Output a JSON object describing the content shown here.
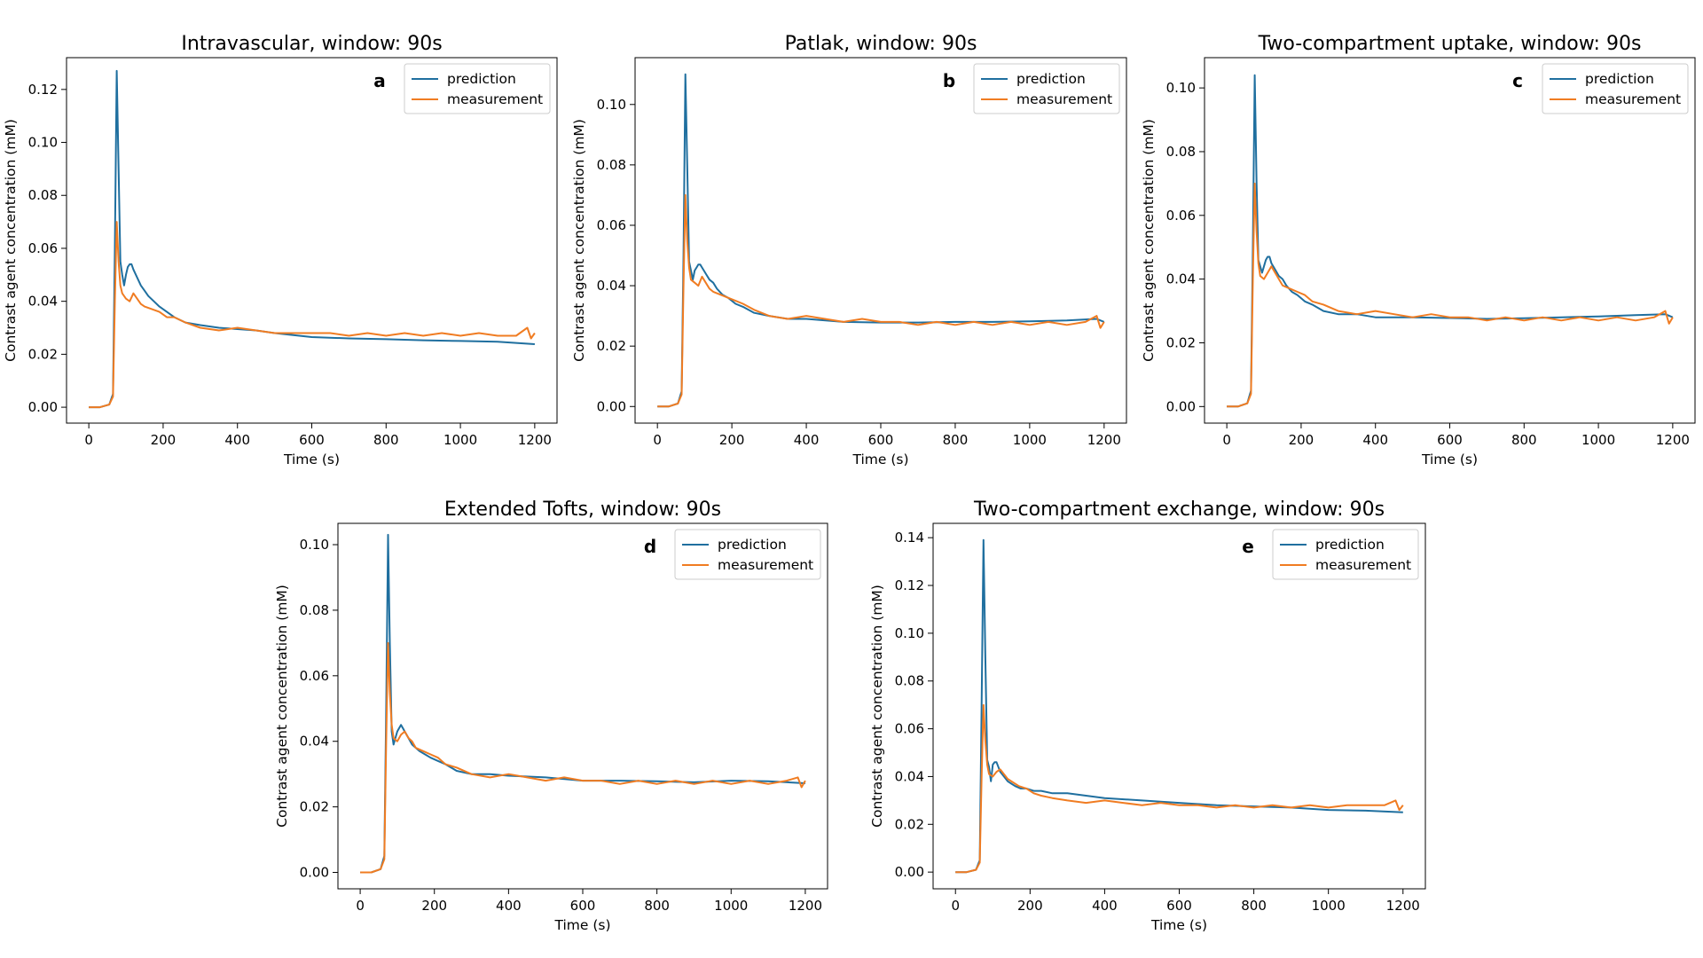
{
  "figure": {
    "colors": {
      "prediction": "#1f6f9f",
      "measurement": "#f07c22"
    }
  },
  "chart_data": [
    {
      "type": "line",
      "letter": "a",
      "title": "Intravascular, window: 90s",
      "xlabel": "Time (s)",
      "ylabel": "Contrast agent concentration (mM)",
      "xlim": [
        -60,
        1260
      ],
      "ylim": [
        -0.006,
        0.132
      ],
      "xticks": [
        0,
        200,
        400,
        600,
        800,
        1000,
        1200
      ],
      "yticks": [
        0.0,
        0.02,
        0.04,
        0.06,
        0.08,
        0.1,
        0.12
      ],
      "ytick_labels": [
        "0.00",
        "0.02",
        "0.04",
        "0.06",
        "0.08",
        "0.10",
        "0.12"
      ],
      "legend": "top-right",
      "series": [
        {
          "name": "prediction",
          "x": [
            0,
            30,
            55,
            65,
            70,
            75,
            80,
            85,
            90,
            95,
            100,
            105,
            110,
            115,
            120,
            130,
            140,
            150,
            160,
            175,
            190,
            210,
            230,
            260,
            300,
            350,
            400,
            450,
            500,
            600,
            700,
            800,
            900,
            1000,
            1100,
            1200
          ],
          "y": [
            0.0,
            0.0,
            0.001,
            0.005,
            0.06,
            0.127,
            0.09,
            0.055,
            0.05,
            0.046,
            0.05,
            0.053,
            0.054,
            0.054,
            0.052,
            0.049,
            0.046,
            0.044,
            0.042,
            0.04,
            0.038,
            0.036,
            0.034,
            0.032,
            0.031,
            0.03,
            0.0295,
            0.029,
            0.028,
            0.0265,
            0.026,
            0.0257,
            0.0253,
            0.025,
            0.0247,
            0.0238
          ]
        },
        {
          "name": "measurement",
          "x": [
            0,
            30,
            55,
            65,
            70,
            75,
            80,
            85,
            90,
            100,
            110,
            120,
            130,
            140,
            150,
            170,
            190,
            210,
            230,
            260,
            300,
            350,
            400,
            450,
            500,
            550,
            600,
            650,
            700,
            750,
            800,
            850,
            900,
            950,
            1000,
            1050,
            1100,
            1150,
            1180,
            1190,
            1200
          ],
          "y": [
            0.0,
            0.0,
            0.001,
            0.004,
            0.04,
            0.07,
            0.055,
            0.046,
            0.043,
            0.041,
            0.04,
            0.043,
            0.041,
            0.039,
            0.038,
            0.037,
            0.036,
            0.034,
            0.034,
            0.032,
            0.03,
            0.029,
            0.03,
            0.029,
            0.028,
            0.028,
            0.028,
            0.028,
            0.027,
            0.028,
            0.027,
            0.028,
            0.027,
            0.028,
            0.027,
            0.028,
            0.027,
            0.027,
            0.03,
            0.026,
            0.028
          ]
        }
      ]
    },
    {
      "type": "line",
      "letter": "b",
      "title": "Patlak, window: 90s",
      "xlabel": "Time (s)",
      "ylabel": "Contrast agent concentration (mM)",
      "xlim": [
        -60,
        1260
      ],
      "ylim": [
        -0.0055,
        0.1155
      ],
      "xticks": [
        0,
        200,
        400,
        600,
        800,
        1000,
        1200
      ],
      "yticks": [
        0.0,
        0.02,
        0.04,
        0.06,
        0.08,
        0.1
      ],
      "ytick_labels": [
        "0.00",
        "0.02",
        "0.04",
        "0.06",
        "0.08",
        "0.10"
      ],
      "legend": "top-right",
      "series": [
        {
          "name": "prediction",
          "x": [
            0,
            30,
            55,
            65,
            70,
            75,
            80,
            85,
            90,
            95,
            100,
            105,
            110,
            115,
            120,
            130,
            140,
            150,
            160,
            175,
            190,
            210,
            230,
            260,
            300,
            350,
            400,
            500,
            600,
            700,
            800,
            900,
            1000,
            1100,
            1180,
            1200
          ],
          "y": [
            0.0,
            0.0,
            0.001,
            0.005,
            0.05,
            0.11,
            0.08,
            0.048,
            0.045,
            0.042,
            0.045,
            0.046,
            0.047,
            0.047,
            0.046,
            0.044,
            0.042,
            0.041,
            0.039,
            0.037,
            0.036,
            0.034,
            0.033,
            0.031,
            0.03,
            0.029,
            0.029,
            0.028,
            0.0278,
            0.0278,
            0.028,
            0.028,
            0.0282,
            0.0285,
            0.029,
            0.028
          ]
        },
        {
          "name": "measurement",
          "x": [
            0,
            30,
            55,
            65,
            70,
            75,
            80,
            85,
            90,
            100,
            110,
            120,
            130,
            140,
            150,
            170,
            190,
            210,
            230,
            260,
            300,
            350,
            400,
            450,
            500,
            550,
            600,
            650,
            700,
            750,
            800,
            850,
            900,
            950,
            1000,
            1050,
            1100,
            1150,
            1180,
            1190,
            1200
          ],
          "y": [
            0.0,
            0.0,
            0.001,
            0.004,
            0.04,
            0.07,
            0.055,
            0.046,
            0.042,
            0.041,
            0.04,
            0.043,
            0.041,
            0.039,
            0.038,
            0.037,
            0.036,
            0.035,
            0.034,
            0.032,
            0.03,
            0.029,
            0.03,
            0.029,
            0.028,
            0.029,
            0.028,
            0.028,
            0.027,
            0.028,
            0.027,
            0.028,
            0.027,
            0.028,
            0.027,
            0.028,
            0.027,
            0.028,
            0.03,
            0.026,
            0.028
          ]
        }
      ]
    },
    {
      "type": "line",
      "letter": "c",
      "title": "Two-compartment uptake, window: 90s",
      "xlabel": "Time (s)",
      "ylabel": "Contrast agent concentration (mM)",
      "xlim": [
        -60,
        1260
      ],
      "ylim": [
        -0.0052,
        0.1095
      ],
      "xticks": [
        0,
        200,
        400,
        600,
        800,
        1000,
        1200
      ],
      "yticks": [
        0.0,
        0.02,
        0.04,
        0.06,
        0.08,
        0.1
      ],
      "ytick_labels": [
        "0.00",
        "0.02",
        "0.04",
        "0.06",
        "0.08",
        "0.10"
      ],
      "legend": "top-right",
      "series": [
        {
          "name": "prediction",
          "x": [
            0,
            30,
            55,
            65,
            70,
            75,
            80,
            85,
            90,
            95,
            100,
            105,
            110,
            115,
            120,
            130,
            140,
            150,
            160,
            175,
            190,
            210,
            230,
            260,
            300,
            350,
            400,
            500,
            600,
            700,
            800,
            900,
            1000,
            1100,
            1180,
            1200
          ],
          "y": [
            0.0,
            0.0,
            0.001,
            0.005,
            0.05,
            0.104,
            0.07,
            0.046,
            0.044,
            0.042,
            0.044,
            0.046,
            0.047,
            0.047,
            0.045,
            0.043,
            0.041,
            0.04,
            0.038,
            0.036,
            0.035,
            0.033,
            0.032,
            0.03,
            0.029,
            0.029,
            0.028,
            0.028,
            0.0278,
            0.0275,
            0.0277,
            0.028,
            0.0283,
            0.0287,
            0.029,
            0.028
          ]
        },
        {
          "name": "measurement",
          "x": [
            0,
            30,
            55,
            65,
            70,
            75,
            80,
            85,
            90,
            100,
            110,
            120,
            130,
            140,
            150,
            170,
            190,
            210,
            230,
            260,
            300,
            350,
            400,
            450,
            500,
            550,
            600,
            650,
            700,
            750,
            800,
            850,
            900,
            950,
            1000,
            1050,
            1100,
            1150,
            1180,
            1190,
            1200
          ],
          "y": [
            0.0,
            0.0,
            0.001,
            0.004,
            0.04,
            0.07,
            0.055,
            0.045,
            0.041,
            0.04,
            0.042,
            0.044,
            0.042,
            0.04,
            0.038,
            0.037,
            0.036,
            0.035,
            0.033,
            0.032,
            0.03,
            0.029,
            0.03,
            0.029,
            0.028,
            0.029,
            0.028,
            0.028,
            0.027,
            0.028,
            0.027,
            0.028,
            0.027,
            0.028,
            0.027,
            0.028,
            0.027,
            0.028,
            0.03,
            0.026,
            0.028
          ]
        }
      ]
    },
    {
      "type": "line",
      "letter": "d",
      "title": "Extended Tofts, window: 90s",
      "xlabel": "Time (s)",
      "ylabel": "Contrast agent concentration (mM)",
      "xlim": [
        -60,
        1260
      ],
      "ylim": [
        -0.005,
        0.1065
      ],
      "xticks": [
        0,
        200,
        400,
        600,
        800,
        1000,
        1200
      ],
      "yticks": [
        0.0,
        0.02,
        0.04,
        0.06,
        0.08,
        0.1
      ],
      "ytick_labels": [
        "0.00",
        "0.02",
        "0.04",
        "0.06",
        "0.08",
        "0.10"
      ],
      "legend": "top-right",
      "series": [
        {
          "name": "prediction",
          "x": [
            0,
            30,
            55,
            65,
            70,
            75,
            80,
            85,
            90,
            95,
            100,
            105,
            110,
            115,
            120,
            130,
            140,
            150,
            160,
            175,
            190,
            210,
            230,
            260,
            300,
            350,
            400,
            500,
            600,
            700,
            800,
            900,
            1000,
            1100,
            1200
          ],
          "y": [
            0.0,
            0.0,
            0.001,
            0.005,
            0.05,
            0.103,
            0.07,
            0.043,
            0.039,
            0.041,
            0.043,
            0.044,
            0.045,
            0.044,
            0.043,
            0.041,
            0.039,
            0.038,
            0.037,
            0.036,
            0.035,
            0.034,
            0.033,
            0.031,
            0.03,
            0.03,
            0.0295,
            0.029,
            0.028,
            0.028,
            0.0278,
            0.0275,
            0.028,
            0.0278,
            0.0272
          ]
        },
        {
          "name": "measurement",
          "x": [
            0,
            30,
            55,
            65,
            70,
            75,
            80,
            85,
            90,
            100,
            110,
            120,
            130,
            140,
            150,
            170,
            190,
            210,
            230,
            260,
            300,
            350,
            400,
            450,
            500,
            550,
            600,
            650,
            700,
            750,
            800,
            850,
            900,
            950,
            1000,
            1050,
            1100,
            1150,
            1180,
            1190,
            1200
          ],
          "y": [
            0.0,
            0.0,
            0.001,
            0.004,
            0.04,
            0.07,
            0.055,
            0.045,
            0.041,
            0.04,
            0.042,
            0.043,
            0.041,
            0.04,
            0.038,
            0.037,
            0.036,
            0.035,
            0.033,
            0.032,
            0.03,
            0.029,
            0.03,
            0.029,
            0.028,
            0.029,
            0.028,
            0.028,
            0.027,
            0.028,
            0.027,
            0.028,
            0.027,
            0.028,
            0.027,
            0.028,
            0.027,
            0.028,
            0.029,
            0.026,
            0.028
          ]
        }
      ]
    },
    {
      "type": "line",
      "letter": "e",
      "title": "Two-compartment exchange, window: 90s",
      "xlabel": "Time (s)",
      "ylabel": "Contrast agent concentration (mM)",
      "xlim": [
        -60,
        1260
      ],
      "ylim": [
        -0.007,
        0.146
      ],
      "xticks": [
        0,
        200,
        400,
        600,
        800,
        1000,
        1200
      ],
      "yticks": [
        0.0,
        0.02,
        0.04,
        0.06,
        0.08,
        0.1,
        0.12,
        0.14
      ],
      "ytick_labels": [
        "0.00",
        "0.02",
        "0.04",
        "0.06",
        "0.08",
        "0.10",
        "0.12",
        "0.14"
      ],
      "legend": "top-right",
      "series": [
        {
          "name": "prediction",
          "x": [
            0,
            30,
            55,
            65,
            70,
            75,
            80,
            85,
            90,
            95,
            100,
            105,
            110,
            115,
            120,
            130,
            140,
            150,
            160,
            175,
            190,
            210,
            230,
            260,
            300,
            350,
            400,
            500,
            600,
            700,
            800,
            900,
            1000,
            1100,
            1200
          ],
          "y": [
            0.0,
            0.0,
            0.001,
            0.005,
            0.07,
            0.139,
            0.09,
            0.047,
            0.044,
            0.038,
            0.045,
            0.046,
            0.046,
            0.044,
            0.042,
            0.04,
            0.038,
            0.037,
            0.036,
            0.035,
            0.035,
            0.034,
            0.034,
            0.033,
            0.033,
            0.032,
            0.031,
            0.03,
            0.029,
            0.028,
            0.0275,
            0.027,
            0.026,
            0.0257,
            0.025
          ]
        },
        {
          "name": "measurement",
          "x": [
            0,
            30,
            55,
            65,
            70,
            75,
            80,
            85,
            90,
            100,
            110,
            120,
            130,
            140,
            150,
            170,
            190,
            210,
            230,
            260,
            300,
            350,
            400,
            450,
            500,
            550,
            600,
            650,
            700,
            750,
            800,
            850,
            900,
            950,
            1000,
            1050,
            1100,
            1150,
            1180,
            1190,
            1200
          ],
          "y": [
            0.0,
            0.0,
            0.001,
            0.004,
            0.04,
            0.07,
            0.055,
            0.045,
            0.041,
            0.04,
            0.042,
            0.043,
            0.041,
            0.039,
            0.038,
            0.036,
            0.035,
            0.033,
            0.032,
            0.031,
            0.03,
            0.029,
            0.03,
            0.029,
            0.028,
            0.029,
            0.028,
            0.028,
            0.027,
            0.028,
            0.027,
            0.028,
            0.027,
            0.028,
            0.027,
            0.028,
            0.028,
            0.028,
            0.03,
            0.026,
            0.028
          ]
        }
      ]
    }
  ]
}
